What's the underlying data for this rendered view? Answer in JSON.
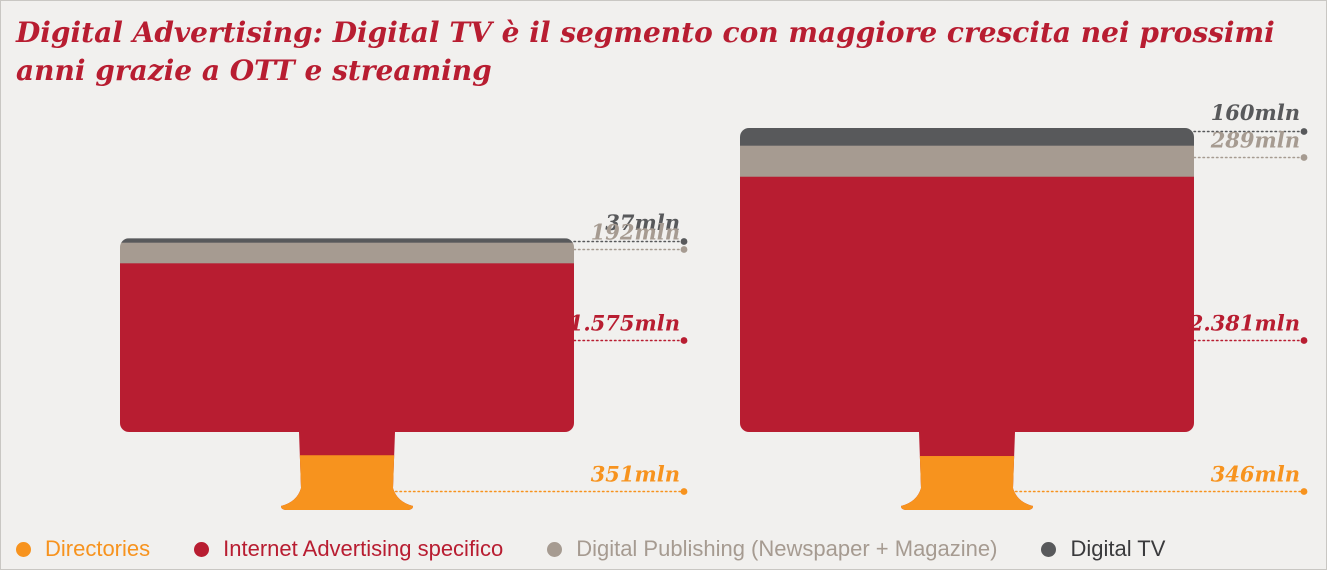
{
  "title": "Digital Advertising: Digital TV è il segmento con maggiore crescita nei prossimi anni grazie a OTT e streaming",
  "colors": {
    "directories": "#f7931e",
    "internet": "#b81d31",
    "publishing": "#a69b91",
    "digital_tv": "#58595b",
    "background": "#f1f0ee"
  },
  "chart_data": {
    "type": "bar",
    "series": [
      {
        "name": "Directories",
        "color": "#f7931e",
        "values": [
          351,
          346
        ],
        "labels": [
          "351mln",
          "346mln"
        ]
      },
      {
        "name": "Internet Advertising specifico",
        "color": "#b81d31",
        "values": [
          1575,
          2381
        ],
        "labels": [
          "1.575mln",
          "2.381mln"
        ]
      },
      {
        "name": "Digital Publishing (Newspaper + Magazine)",
        "color": "#a69b91",
        "values": [
          192,
          289
        ],
        "labels": [
          "192mln",
          "289mln"
        ]
      },
      {
        "name": "Digital TV",
        "color": "#58595b",
        "values": [
          37,
          160
        ],
        "labels": [
          "37mln",
          "160mln"
        ]
      }
    ],
    "categories": [
      "",
      ""
    ],
    "unit": "mln"
  },
  "legend": [
    {
      "label": "Directories",
      "color": "#f7931e",
      "text_color": "#f7931e"
    },
    {
      "label": "Internet Advertising specifico",
      "color": "#b81d31",
      "text_color": "#b81d31"
    },
    {
      "label": "Digital Publishing (Newspaper + Magazine)",
      "color": "#a69b91",
      "text_color": "#a69b91"
    },
    {
      "label": "Digital TV",
      "color": "#58595b",
      "text_color": "#3a3a3c"
    }
  ]
}
